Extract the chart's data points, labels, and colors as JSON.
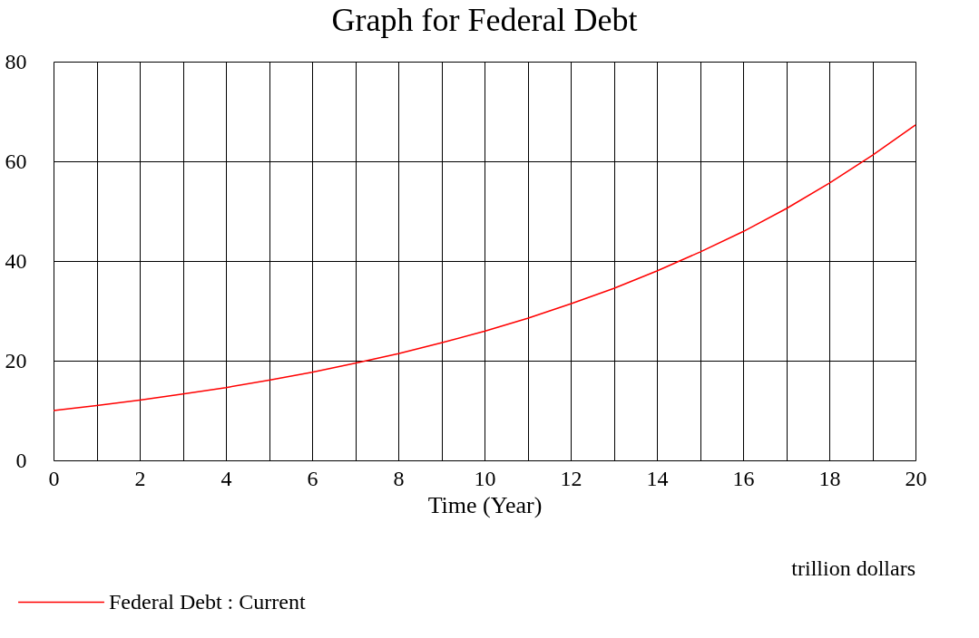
{
  "chart_data": {
    "type": "line",
    "title": "Graph for Federal Debt",
    "xlabel": "Time (Year)",
    "x": [
      0,
      1,
      2,
      3,
      4,
      5,
      6,
      7,
      8,
      9,
      10,
      11,
      12,
      13,
      14,
      15,
      16,
      17,
      18,
      19,
      20
    ],
    "series": [
      {
        "name": "Federal Debt : Current",
        "color": "#ff0000",
        "values": [
          10,
          11,
          12.1,
          13.3,
          14.6,
          16.1,
          17.7,
          19.5,
          21.4,
          23.6,
          25.9,
          28.5,
          31.4,
          34.5,
          38.0,
          41.8,
          45.9,
          50.5,
          55.6,
          61.2,
          67.3
        ]
      }
    ],
    "xlim": [
      0,
      20
    ],
    "ylim": [
      0,
      80
    ],
    "xticks": [
      0,
      {
        "value": 1,
        "label": null
      },
      2,
      {
        "value": 3,
        "label": null
      },
      4,
      {
        "value": 5,
        "label": null
      },
      6,
      {
        "value": 7,
        "label": null
      },
      8,
      {
        "value": 9,
        "label": null
      },
      10,
      {
        "value": 11,
        "label": null
      },
      12,
      {
        "value": 13,
        "label": null
      },
      14,
      {
        "value": 15,
        "label": null
      },
      16,
      {
        "value": 17,
        "label": null
      },
      18,
      {
        "value": 19,
        "label": null
      },
      20
    ],
    "yticks": [
      0,
      20,
      40,
      60,
      80
    ],
    "grid": true,
    "legend": "bottom",
    "line_style": "solid",
    "marker": "none",
    "annotations": [
      "trillion dollars"
    ]
  }
}
